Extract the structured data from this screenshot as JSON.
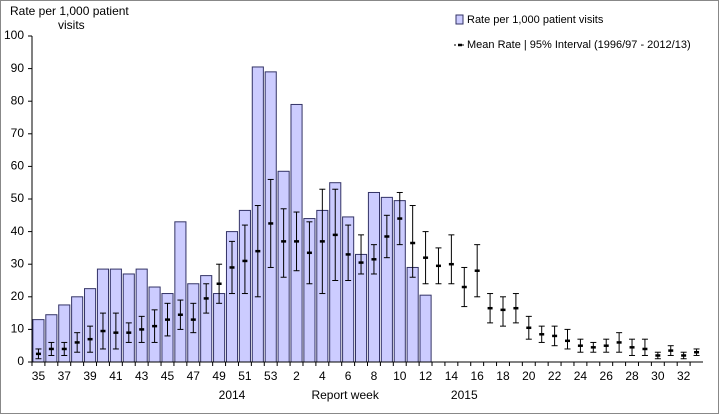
{
  "chart_data": {
    "type": "bar",
    "ylabel_lines": [
      "Rate per 1,000  patient",
      "visits"
    ],
    "xlabel": "Report week",
    "year_labels": [
      "2014",
      "2015"
    ],
    "categories": [
      "35",
      null,
      "37",
      null,
      "39",
      null,
      "41",
      null,
      "43",
      null,
      "45",
      null,
      "47",
      null,
      "49",
      null,
      "51",
      null,
      "53",
      null,
      "2",
      null,
      "4",
      null,
      "6",
      null,
      "8",
      null,
      "10",
      null,
      "12",
      null,
      "14",
      null,
      "16",
      null,
      "18",
      null,
      "20",
      null,
      "22",
      null,
      "24",
      null,
      "26",
      null,
      "28",
      null,
      "30",
      null,
      "32",
      null
    ],
    "series": [
      {
        "name": "Rate per 1,000 patient visits",
        "color": "#ccccff",
        "edge": "#333366",
        "values": [
          13,
          14.5,
          17.5,
          20,
          22.5,
          28.5,
          28.5,
          27,
          28.5,
          23,
          21,
          43,
          24,
          26.5,
          21,
          40,
          46.5,
          90.5,
          89,
          58.5,
          79,
          44,
          46.5,
          55,
          44.5,
          33,
          52,
          50.5,
          49.5,
          29,
          20.5,
          null,
          null,
          null,
          null,
          null,
          null,
          null,
          null,
          null,
          null,
          null,
          null,
          null,
          null,
          null,
          null,
          null,
          null,
          null,
          null,
          null
        ]
      },
      {
        "name": "Mean Rate | 95% Interval (1996/97 - 2012/13)",
        "color": "#000000",
        "values": [
          2.5,
          4,
          4,
          6,
          7,
          9.5,
          9,
          9,
          10,
          11,
          13,
          14.5,
          13,
          19.5,
          24,
          29,
          31,
          34,
          42.5,
          37,
          37,
          33.5,
          37,
          39,
          33,
          30.5,
          31.5,
          38.5,
          44,
          36.5,
          32,
          29.5,
          30,
          23,
          28,
          16.5,
          16,
          16.5,
          10.5,
          8.5,
          8,
          6.5,
          5,
          4.5,
          5,
          6,
          4.5,
          4,
          2,
          3.5,
          2,
          3
        ],
        "low": [
          1,
          2,
          2,
          3,
          3,
          4,
          4,
          6,
          6,
          6,
          8,
          10,
          9,
          15,
          18,
          21,
          21,
          20,
          29,
          26,
          28,
          24,
          21,
          25,
          25,
          27,
          27,
          32,
          36,
          26,
          24,
          24,
          24,
          17,
          20,
          12,
          11,
          12,
          7,
          6,
          5,
          4,
          3,
          3,
          3,
          3,
          2,
          2,
          1,
          2,
          1,
          2
        ],
        "high": [
          4,
          6,
          6,
          9,
          11,
          15,
          15,
          12,
          14,
          16,
          18,
          19,
          18,
          24,
          30,
          37,
          42,
          48,
          56,
          47,
          46,
          43,
          53,
          53,
          42,
          39,
          36,
          45,
          52,
          48,
          40,
          35,
          39,
          29,
          36,
          21,
          20,
          21,
          14,
          11,
          11,
          10,
          7,
          6,
          7,
          9,
          7,
          7,
          3,
          5,
          3,
          4
        ]
      }
    ],
    "ylim": [
      0,
      100
    ],
    "yticks": [
      0,
      10,
      20,
      30,
      40,
      50,
      60,
      70,
      80,
      90,
      100
    ],
    "grid": false
  }
}
